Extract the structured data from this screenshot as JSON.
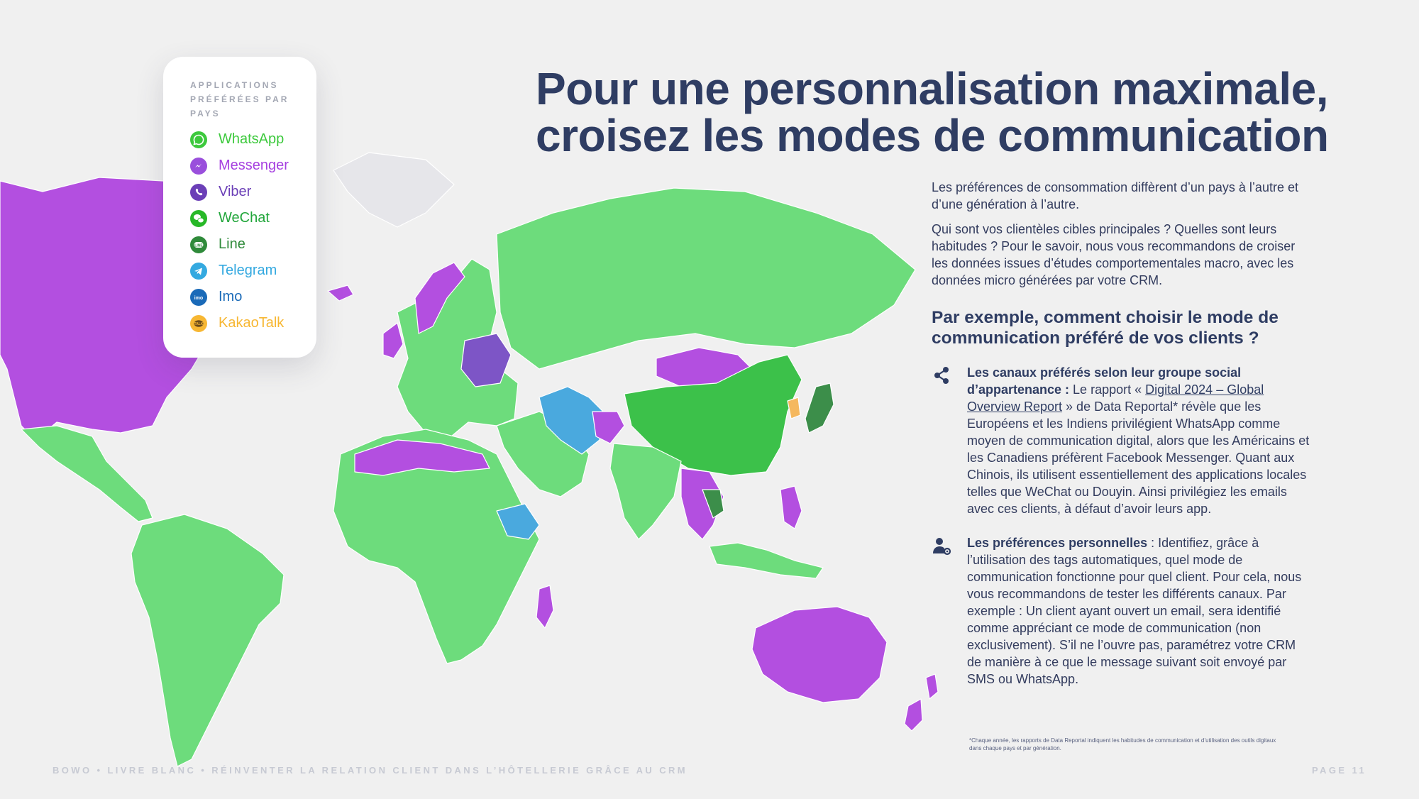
{
  "legend": {
    "title": "APPLICATIONS PRÉFÉRÉES PAR PAYS",
    "items": [
      {
        "label": "WhatsApp",
        "icon": "whatsapp-icon",
        "color": "#3dc93d",
        "text_color": "#3dc93d"
      },
      {
        "label": "Messenger",
        "icon": "messenger-icon",
        "color": "#9a4fdc",
        "text_color": "#a640e0"
      },
      {
        "label": "Viber",
        "icon": "viber-icon",
        "color": "#6b3fb7",
        "text_color": "#6b3fb7"
      },
      {
        "label": "WeChat",
        "icon": "wechat-icon",
        "color": "#28b828",
        "text_color": "#22a63b"
      },
      {
        "label": "Line",
        "icon": "line-icon",
        "color": "#2f8a3a",
        "text_color": "#2f8a3a"
      },
      {
        "label": "Telegram",
        "icon": "telegram-icon",
        "color": "#34a9e0",
        "text_color": "#34a9e0"
      },
      {
        "label": "Imo",
        "icon": "imo-icon",
        "color": "#1a6ab8",
        "text_color": "#1a6ab8"
      },
      {
        "label": "KakaoTalk",
        "icon": "kakaotalk-icon",
        "color": "#f7b733",
        "text_color": "#f7b733"
      }
    ]
  },
  "map_colors": {
    "whatsapp": "#6ddc7c",
    "messenger": "#b34fe0",
    "viber": "#7d55c6",
    "wechat": "#3cc14a",
    "line": "#3c8e4a",
    "telegram": "#4aa9de",
    "kakaotalk": "#f5b85e"
  },
  "title": "Pour une personnalisation maximale, croisez les modes de communication",
  "intro": {
    "p1": "Les préférences de consommation diffèrent d’un pays à l’autre et d’une génération à l’autre.",
    "p2": "Qui sont vos clientèles cibles principales ? Quelles sont leurs habitudes ? Pour le savoir, nous vous recommandons de croiser les données issues d’études comportementales macro, avec les données micro générées par votre CRM."
  },
  "subheading": "Par exemple, comment choisir le mode de communication préféré de vos clients ?",
  "bullets": {
    "b1": {
      "bold": "Les canaux préférés selon leur groupe social d’appartenance :",
      "before_link": " Le rapport « ",
      "link": "Digital 2024 – Global Overview Report",
      "after_link": " » de Data Reportal* révèle que les Européens et les Indiens privilégient WhatsApp comme moyen de communication digital, alors que les Américains et les Canadiens préfèrent Facebook Messenger. Quant aux Chinois, ils utilisent essentiellement des applications locales telles que WeChat ou Douyin. Ainsi privilégiez les emails avec ces clients, à défaut d’avoir leurs app."
    },
    "b2": {
      "bold": "Les préférences personnelles",
      "text": " : Identifiez, grâce à l’utilisation des tags automatiques, quel mode de communication fonctionne pour quel client. Pour cela, nous vous recommandons de tester les différents canaux. Par exemple : Un client ayant ouvert un email, sera identifié comme appréciant ce mode de communication (non exclusivement). S’il ne l’ouvre pas, paramétrez votre CRM de manière à ce que le message suivant soit envoyé par SMS ou WhatsApp."
    }
  },
  "footnote": "*Chaque année, les rapports de Data Reportal indiquent les habitudes de communication et d’utilisation des outils digitaux dans chaque pays et par génération.",
  "footer": {
    "left": "BOWO • LIVRE BLANC • RÉINVENTER LA RELATION CLIENT DANS L’HÔTELLERIE GRÂCE AU CRM",
    "right": "PAGE 11"
  }
}
